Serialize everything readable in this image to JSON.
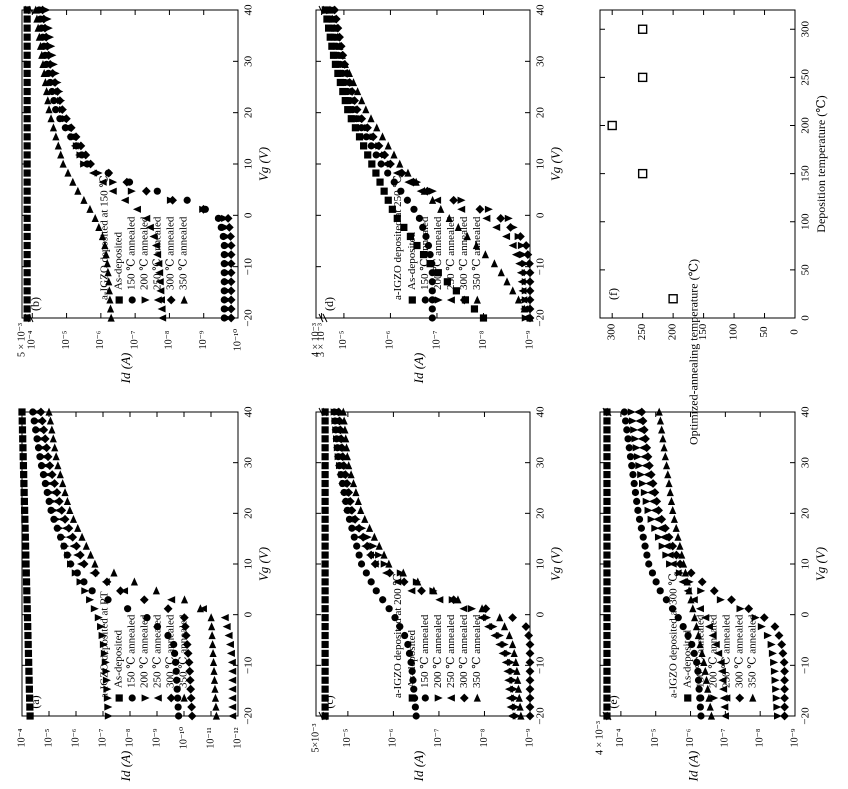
{
  "chart_data": [
    {
      "id": "a",
      "type": "scatter",
      "panel_label": "(a)",
      "annotation": "a-IGZO deposited at RT",
      "xlabel": "Vg (V)",
      "ylabel": "Id (A)",
      "scale": "log",
      "xlim": [
        -20,
        40
      ],
      "ylim_exp": [
        -12,
        -4
      ],
      "x_ticks": [
        "−20",
        "−10",
        "0",
        "10",
        "20",
        "30",
        "40"
      ],
      "y_ticks": [
        "10⁻¹²",
        "10⁻¹¹",
        "10⁻¹⁰",
        "10⁻⁹",
        "10⁻⁸",
        "10⁻⁷",
        "10⁻⁶",
        "10⁻⁵",
        "10⁻⁴"
      ],
      "y_ticks_exp": [
        -12,
        -11,
        -10,
        -9,
        -8,
        -7,
        -6,
        -5,
        -4
      ],
      "axis_break": "",
      "legend_position": "bottom-right",
      "series": [
        {
          "name": "As-deposited",
          "marker": "square",
          "x": [
            -20,
            -10,
            0,
            10,
            20,
            30,
            40
          ],
          "y_exp": [
            -4.3,
            -4.25,
            -4.2,
            -4.15,
            -4.1,
            -4.05,
            -4.0
          ]
        },
        {
          "name": "150 ℃ annealed",
          "marker": "circle",
          "x": [
            -20,
            -10,
            -5,
            0,
            2,
            5,
            10,
            20,
            30,
            40
          ],
          "y_exp": [
            -9.8,
            -9.7,
            -9.6,
            -8.5,
            -7.5,
            -6.5,
            -5.8,
            -5.1,
            -4.7,
            -4.4
          ]
        },
        {
          "name": "200 ℃ annealed",
          "marker": "triangle-up",
          "x": [
            -20,
            -10,
            -5,
            -2,
            0,
            5,
            10,
            20,
            30,
            40
          ],
          "y_exp": [
            -7.2,
            -7.1,
            -7.0,
            -6.9,
            -6.8,
            -6.3,
            -5.8,
            -5.2,
            -4.8,
            -4.5
          ]
        },
        {
          "name": "250 ℃ annealed",
          "marker": "triangle-down",
          "x": [
            -20,
            -10,
            -5,
            0,
            3,
            5,
            10,
            20,
            30,
            40
          ],
          "y_exp": [
            -11.8,
            -11.8,
            -11.7,
            -11.5,
            -9.5,
            -7.5,
            -6.2,
            -5.4,
            -4.9,
            -4.6
          ]
        },
        {
          "name": "300 ℃ annealed",
          "marker": "diamond",
          "x": [
            -20,
            -10,
            -5,
            0,
            2,
            5,
            10,
            20,
            30,
            40
          ],
          "y_exp": [
            -10.3,
            -10.2,
            -10.1,
            -10.0,
            -9.0,
            -7.5,
            -6.3,
            -5.5,
            -5.0,
            -4.7
          ]
        },
        {
          "name": "350 ℃ annealed",
          "marker": "triangle-left",
          "x": [
            -20,
            -10,
            0,
            3,
            5,
            8,
            10,
            20,
            30,
            40
          ],
          "y_exp": [
            -11.2,
            -11.1,
            -11.0,
            -10.0,
            -8.8,
            -7.5,
            -6.7,
            -5.8,
            -5.3,
            -5.0
          ]
        }
      ]
    },
    {
      "id": "b",
      "type": "scatter",
      "panel_label": "(b)",
      "annotation": "a-IGZO deposited at 150 ℃",
      "xlabel": "Vg (V)",
      "ylabel": "Id (A)",
      "scale": "log",
      "xlim": [
        -20,
        40
      ],
      "ylim_exp": [
        -10,
        -3.7
      ],
      "x_ticks": [
        "−20",
        "−10",
        "0",
        "10",
        "20",
        "30",
        "40"
      ],
      "y_ticks": [
        "10⁻¹⁰",
        "10⁻⁹",
        "10⁻⁸",
        "10⁻⁷",
        "10⁻⁶",
        "10⁻⁵",
        "10⁻⁴",
        "5 × 10⁻³"
      ],
      "y_ticks_exp": [
        -10,
        -9,
        -8,
        -7,
        -6,
        -5,
        -4,
        -3.7
      ],
      "axis_break": "5 × 10⁻³",
      "legend_position": "bottom-right",
      "series": [
        {
          "name": "As-deposited",
          "marker": "square",
          "x": [
            -20,
            -10,
            0,
            10,
            20,
            30,
            40
          ],
          "y_exp": [
            -3.85,
            -3.85,
            -3.85,
            -3.85,
            -3.85,
            -3.85,
            -3.85
          ]
        },
        {
          "name": "150 ℃ annealed",
          "marker": "circle",
          "x": [
            -20,
            -10,
            -5,
            -2,
            0,
            3,
            6,
            10,
            20,
            30,
            40
          ],
          "y_exp": [
            -9.6,
            -9.6,
            -9.6,
            -9.5,
            -9.4,
            -8.5,
            -7.0,
            -5.6,
            -4.7,
            -4.4,
            -4.2
          ]
        },
        {
          "name": "200 ℃ annealed",
          "marker": "triangle-up",
          "x": [
            -20,
            -10,
            -5,
            0,
            3,
            5,
            10,
            20,
            30,
            40
          ],
          "y_exp": [
            -9.7,
            -9.7,
            -9.7,
            -9.6,
            -8.0,
            -6.7,
            -5.5,
            -4.9,
            -4.6,
            -4.4
          ]
        },
        {
          "name": "250 ℃ annealed",
          "marker": "triangle-down",
          "x": [
            -20,
            -10,
            -5,
            0,
            5,
            10,
            20,
            30,
            40
          ],
          "y_exp": [
            -7.8,
            -7.7,
            -7.6,
            -7.3,
            -6.3,
            -5.5,
            -4.8,
            -4.4,
            -4.2
          ]
        },
        {
          "name": "300 ℃ annealed",
          "marker": "diamond",
          "x": [
            -20,
            -10,
            -5,
            0,
            2,
            5,
            10,
            20,
            30,
            40
          ],
          "y_exp": [
            -9.8,
            -9.8,
            -9.8,
            -9.7,
            -8.5,
            -7.2,
            -5.7,
            -4.9,
            -4.5,
            -4.3
          ]
        },
        {
          "name": "350 ℃ annealed",
          "marker": "triangle-left",
          "x": [
            -20,
            -10,
            -5,
            0,
            5,
            10,
            20,
            30,
            40
          ],
          "y_exp": [
            -6.3,
            -6.2,
            -6.1,
            -5.8,
            -5.3,
            -4.9,
            -4.5,
            -4.3,
            -4.1
          ]
        }
      ]
    },
    {
      "id": "c",
      "type": "scatter",
      "panel_label": "(c)",
      "annotation": "a-IGZO deposited at 200 ℃",
      "xlabel": "Vg (V)",
      "ylabel": "Id (A)",
      "scale": "log",
      "xlim": [
        -20,
        40
      ],
      "ylim_exp": [
        -9,
        -4.3
      ],
      "x_ticks": [
        "−20",
        "−10",
        "0",
        "10",
        "20",
        "30",
        "40"
      ],
      "y_ticks": [
        "10⁻⁹",
        "10⁻⁸",
        "10⁻⁷",
        "10⁻⁶",
        "10⁻⁵",
        "5×10⁻³"
      ],
      "y_ticks_exp": [
        -9,
        -8,
        -7,
        -6,
        -5,
        -4.3
      ],
      "axis_break": "5×10⁻³",
      "legend_position": "bottom-right",
      "series": [
        {
          "name": "As-deposited",
          "marker": "square",
          "x": [
            -20,
            -10,
            0,
            10,
            20,
            30,
            40
          ],
          "y_exp": [
            -4.5,
            -4.5,
            -4.5,
            -4.5,
            -4.5,
            -4.5,
            -4.5
          ]
        },
        {
          "name": "150 ℃ annealed",
          "marker": "circle",
          "x": [
            -20,
            -10,
            -5,
            0,
            5,
            10,
            20,
            30,
            40
          ],
          "y_exp": [
            -6.5,
            -6.4,
            -6.3,
            -6.0,
            -5.6,
            -5.3,
            -5.0,
            -4.8,
            -4.7
          ]
        },
        {
          "name": "200 ℃ annealed",
          "marker": "triangle-up",
          "x": [
            -20,
            -10,
            -5,
            0,
            5,
            10,
            20,
            30,
            40
          ],
          "y_exp": [
            -8.7,
            -8.6,
            -8.4,
            -8.0,
            -6.8,
            -5.8,
            -5.1,
            -4.8,
            -4.7
          ]
        },
        {
          "name": "250 ℃ annealed",
          "marker": "triangle-down",
          "x": [
            -20,
            -10,
            -5,
            0,
            3,
            5,
            10,
            20,
            30,
            40
          ],
          "y_exp": [
            -8.6,
            -8.5,
            -8.3,
            -7.9,
            -7.0,
            -6.3,
            -5.6,
            -5.0,
            -4.8,
            -4.7
          ]
        },
        {
          "name": "300 ℃ annealed",
          "marker": "diamond",
          "x": [
            -20,
            -10,
            -5,
            -2,
            0,
            5,
            10,
            20,
            30,
            40
          ],
          "y_exp": [
            -9.0,
            -9.0,
            -9.0,
            -8.9,
            -8.5,
            -6.5,
            -5.6,
            -5.1,
            -4.9,
            -4.8
          ]
        },
        {
          "name": "350 ℃ annealed",
          "marker": "triangle-left",
          "x": [
            -20,
            -10,
            -5,
            0,
            5,
            10,
            20,
            30,
            40
          ],
          "y_exp": [
            -8.8,
            -8.7,
            -8.6,
            -8.3,
            -6.8,
            -5.9,
            -5.3,
            -5.0,
            -4.9
          ]
        }
      ]
    },
    {
      "id": "d",
      "type": "scatter",
      "panel_label": "(d)",
      "annotation": "a-IGZO deposited at 250 ℃",
      "xlabel": "Vg (V)",
      "ylabel": "Id (A)",
      "scale": "log",
      "xlim": [
        -20,
        40
      ],
      "ylim_exp": [
        -9,
        -4.4
      ],
      "x_ticks": [
        "−20",
        "−10",
        "0",
        "10",
        "20",
        "30",
        "40"
      ],
      "y_ticks": [
        "10⁻⁹",
        "10⁻⁸",
        "10⁻⁷",
        "10⁻⁶",
        "10⁻⁵",
        "3 × 10⁻³",
        "4 × 10⁻³"
      ],
      "y_ticks_exp": [
        -9,
        -8,
        -7,
        -6,
        -5,
        -4.52,
        -4.4
      ],
      "axis_break": "3 × 10⁻³",
      "legend_position": "bottom-right",
      "series": [
        {
          "name": "As-deposited",
          "marker": "square",
          "x": [
            -20,
            -10,
            0,
            10,
            20,
            30,
            40
          ],
          "y_exp": [
            -8.0,
            -6.9,
            -6.1,
            -5.6,
            -5.1,
            -4.8,
            -4.6
          ]
        },
        {
          "name": "150 ℃ annealed",
          "marker": "circle",
          "x": [
            -20,
            -10,
            -5,
            0,
            5,
            10,
            20,
            30,
            40
          ],
          "y_exp": [
            -6.9,
            -6.9,
            -6.8,
            -6.6,
            -6.2,
            -5.8,
            -5.2,
            -4.9,
            -4.7
          ]
        },
        {
          "name": "200 ℃ annealed",
          "marker": "triangle-up",
          "x": [
            -20,
            -10,
            -5,
            0,
            3,
            5,
            10,
            20,
            30,
            40
          ],
          "y_exp": [
            -8.9,
            -8.9,
            -8.8,
            -8.5,
            -7.5,
            -6.8,
            -6.0,
            -5.3,
            -4.9,
            -4.7
          ]
        },
        {
          "name": "250 ℃ annealed",
          "marker": "triangle-down",
          "x": [
            -20,
            -10,
            -5,
            0,
            2,
            5,
            10,
            20,
            30,
            40
          ],
          "y_exp": [
            -8.9,
            -8.8,
            -8.6,
            -8.0,
            -7.2,
            -6.6,
            -5.9,
            -5.2,
            -4.9,
            -4.7
          ]
        },
        {
          "name": "300 ℃ annealed",
          "marker": "diamond",
          "x": [
            -20,
            -10,
            -5,
            0,
            5,
            10,
            20,
            30,
            40
          ],
          "y_exp": [
            -9.0,
            -9.0,
            -8.9,
            -8.3,
            -6.7,
            -6.0,
            -5.3,
            -5.0,
            -4.8
          ]
        },
        {
          "name": "350 ℃ annealed",
          "marker": "triangle-left",
          "x": [
            -20,
            -10,
            0,
            10,
            20,
            30,
            40
          ],
          "y_exp": [
            -9.0,
            -8.3,
            -7.2,
            -6.2,
            -5.5,
            -5.0,
            -4.7
          ]
        }
      ]
    },
    {
      "id": "e",
      "type": "scatter",
      "panel_label": "(e)",
      "annotation": "a-IGZO deposited at 300 ℃",
      "xlabel": "Vg (V)",
      "ylabel": "Id (A)",
      "scale": "log",
      "xlim": [
        -20,
        40
      ],
      "ylim_exp": [
        -9,
        -3.4
      ],
      "x_ticks": [
        "−20",
        "−10",
        "0",
        "10",
        "20",
        "30",
        "40"
      ],
      "y_ticks": [
        "10⁻⁹",
        "10⁻⁸",
        "10⁻⁷",
        "10⁻⁶",
        "10⁻⁵",
        "10⁻⁴",
        "4 × 10⁻³"
      ],
      "y_ticks_exp": [
        -9,
        -8,
        -7,
        -6,
        -5,
        -4,
        -3.4
      ],
      "axis_break": "4 × 10⁻³",
      "legend_position": "bottom-right",
      "series": [
        {
          "name": "As-deposited",
          "marker": "square",
          "x": [
            -20,
            -10,
            0,
            10,
            20,
            30,
            40
          ],
          "y_exp": [
            -3.6,
            -3.6,
            -3.6,
            -3.6,
            -3.6,
            -3.6,
            -3.6
          ]
        },
        {
          "name": "150 ℃ annealed",
          "marker": "circle",
          "x": [
            -20,
            -10,
            -5,
            0,
            5,
            10,
            20,
            30,
            40
          ],
          "y_exp": [
            -6.3,
            -6.2,
            -6.0,
            -5.6,
            -5.1,
            -4.8,
            -4.5,
            -4.3,
            -4.1
          ]
        },
        {
          "name": "200 ℃ annealed",
          "marker": "triangle-up",
          "x": [
            -20,
            -10,
            -5,
            0,
            5,
            10,
            20,
            30,
            40
          ],
          "y_exp": [
            -8.5,
            -8.4,
            -8.3,
            -7.8,
            -6.2,
            -5.4,
            -4.8,
            -4.5,
            -4.3
          ]
        },
        {
          "name": "250 ℃ annealed",
          "marker": "triangle-down",
          "x": [
            -20,
            -10,
            -5,
            0,
            5,
            10,
            20,
            30,
            40
          ],
          "y_exp": [
            -7.0,
            -6.9,
            -6.7,
            -6.4,
            -5.9,
            -5.5,
            -5.0,
            -4.7,
            -4.5
          ]
        },
        {
          "name": "300 ℃ annealed",
          "marker": "diamond",
          "x": [
            -20,
            -10,
            -5,
            -2,
            0,
            5,
            10,
            20,
            30,
            40
          ],
          "y_exp": [
            -8.7,
            -8.7,
            -8.6,
            -8.4,
            -8.0,
            -6.6,
            -5.7,
            -5.1,
            -4.8,
            -4.6
          ]
        },
        {
          "name": "350 ℃ annealed",
          "marker": "triangle-left",
          "x": [
            -20,
            -10,
            0,
            10,
            20,
            30,
            40
          ],
          "y_exp": [
            -6.6,
            -6.4,
            -6.1,
            -5.8,
            -5.5,
            -5.3,
            -5.1
          ]
        }
      ]
    },
    {
      "id": "f",
      "type": "scatter",
      "panel_label": "(f)",
      "xlabel": "Deposition temperature (℃)",
      "ylabel": "Optimized-annealing temperature (℃)",
      "scale": "linear",
      "xlim": [
        0,
        320
      ],
      "ylim": [
        0,
        320
      ],
      "x_ticks": [
        "0",
        "50",
        "100",
        "150",
        "200",
        "250",
        "300"
      ],
      "y_ticks": [
        "0",
        "50",
        "100",
        "150",
        "200",
        "250",
        "300"
      ],
      "series": [
        {
          "name": "",
          "marker": "square-open",
          "x": [
            20,
            150,
            200,
            250,
            300
          ],
          "y": [
            200,
            250,
            300,
            250,
            250
          ]
        }
      ]
    }
  ]
}
